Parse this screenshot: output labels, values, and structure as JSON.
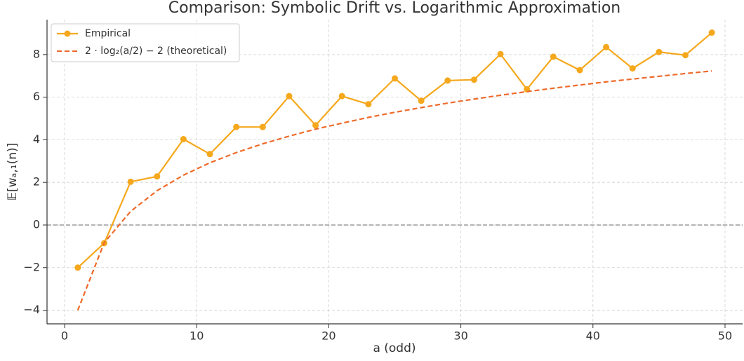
{
  "chart_data": {
    "type": "line",
    "title": "Comparison: Symbolic Drift vs. Logarithmic Approximation",
    "xlabel": "a (odd)",
    "ylabel": "𝔼[wₐ,₁(n)]",
    "x": [
      1,
      3,
      5,
      7,
      9,
      11,
      13,
      15,
      17,
      19,
      21,
      23,
      25,
      27,
      29,
      31,
      33,
      35,
      37,
      39,
      41,
      43,
      45,
      47,
      49
    ],
    "series": [
      {
        "name": "Empirical",
        "color": "#f5a81c",
        "linestyle": "solid",
        "marker": "o",
        "values": [
          -2.0,
          -0.85,
          2.03,
          2.28,
          4.03,
          3.33,
          4.6,
          4.6,
          6.05,
          4.68,
          6.05,
          5.67,
          6.88,
          5.83,
          6.78,
          6.82,
          8.02,
          6.37,
          7.9,
          7.27,
          8.35,
          7.35,
          8.12,
          7.97,
          9.03
        ]
      },
      {
        "name": "2 · log₂(a/2) − 2 (theoretical)",
        "color": "#ee6b2b",
        "linestyle": "dashed",
        "marker": "none",
        "values": [
          -4.0,
          -0.83,
          0.64,
          1.61,
          2.34,
          2.92,
          3.4,
          3.81,
          4.17,
          4.5,
          4.78,
          5.05,
          5.29,
          5.51,
          5.72,
          5.91,
          6.09,
          6.26,
          6.42,
          6.57,
          6.72,
          6.85,
          6.98,
          7.11,
          7.23
        ]
      }
    ],
    "hline": 0,
    "xlim": [
      -1.33,
      51.33
    ],
    "ylim": [
      -4.64,
      9.64
    ],
    "xticks": [
      0,
      10,
      20,
      30,
      40,
      50
    ],
    "yticks": [
      {
        "value": -4,
        "label": "−4"
      },
      {
        "value": -2,
        "label": "−2"
      },
      0,
      2,
      4,
      6,
      8
    ],
    "grid": true,
    "legend": "upper left"
  }
}
